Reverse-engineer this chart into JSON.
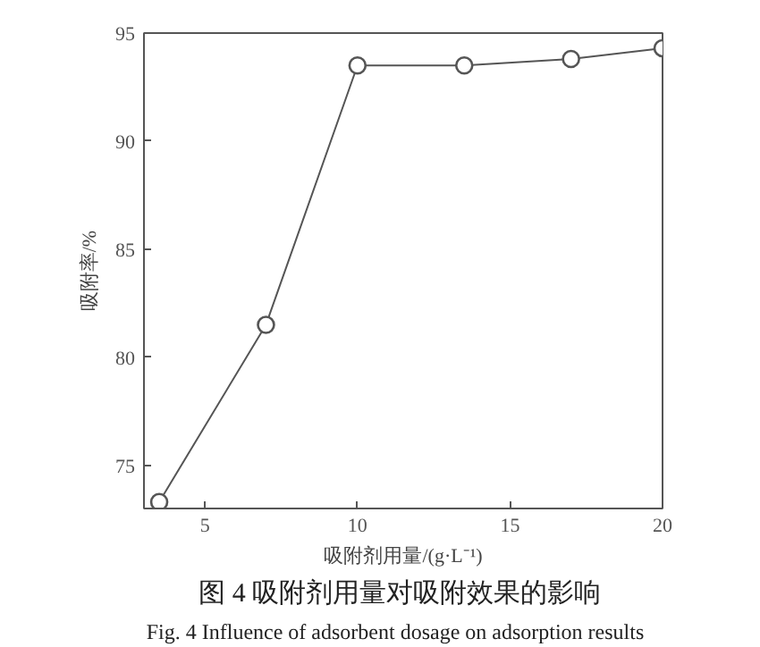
{
  "chart_data": {
    "type": "line",
    "title": "图 4  吸附剂用量对吸附效果的影响",
    "subtitle": "Fig. 4    Influence of adsorbent dosage on adsorption results",
    "xlabel": "吸附剂用量/(g·L⁻¹)",
    "ylabel": "吸附率/%",
    "x": [
      3.5,
      7,
      10,
      13.5,
      17,
      20
    ],
    "series": [
      {
        "color": "#555555",
        "values": [
          73.3,
          81.5,
          93.5,
          93.5,
          93.8,
          94.3
        ]
      }
    ],
    "xlim": [
      3,
      20
    ],
    "xticks": [
      5,
      10,
      15,
      20
    ],
    "ylim": [
      73,
      95
    ],
    "yticks": [
      75,
      80,
      85,
      90,
      95
    ],
    "marker": "circle",
    "line_style": "solid"
  }
}
